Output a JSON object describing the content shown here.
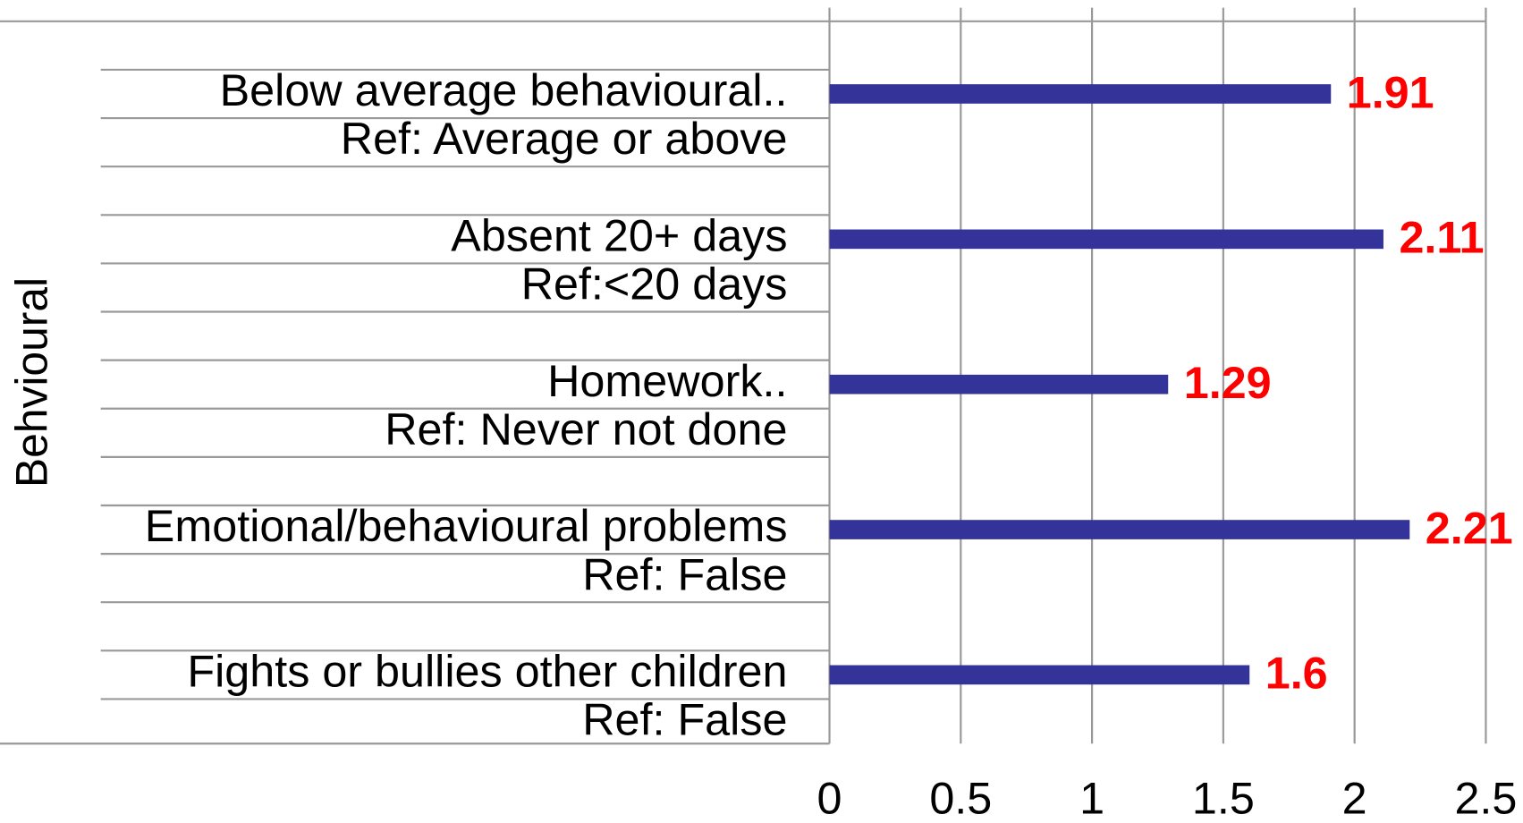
{
  "chart_data": {
    "type": "bar",
    "orientation": "horizontal",
    "group_label": "Behvioural",
    "categories": [
      [
        "Below average behavioural..",
        "Ref: Average or above"
      ],
      [
        "Absent 20+ days",
        "Ref:<20 days"
      ],
      [
        "Homework..",
        "Ref: Never not done"
      ],
      [
        "Emotional/behavioural problems",
        "Ref: False"
      ],
      [
        "Fights or bullies other children",
        "Ref: False"
      ]
    ],
    "values": [
      1.91,
      2.11,
      1.29,
      2.21,
      1.6
    ],
    "color": "#333399",
    "value_label_color": "#ff0000",
    "xlim": [
      0,
      2.5
    ],
    "xticks": [
      0,
      0.5,
      1,
      1.5,
      2,
      2.5
    ],
    "grid": true
  }
}
